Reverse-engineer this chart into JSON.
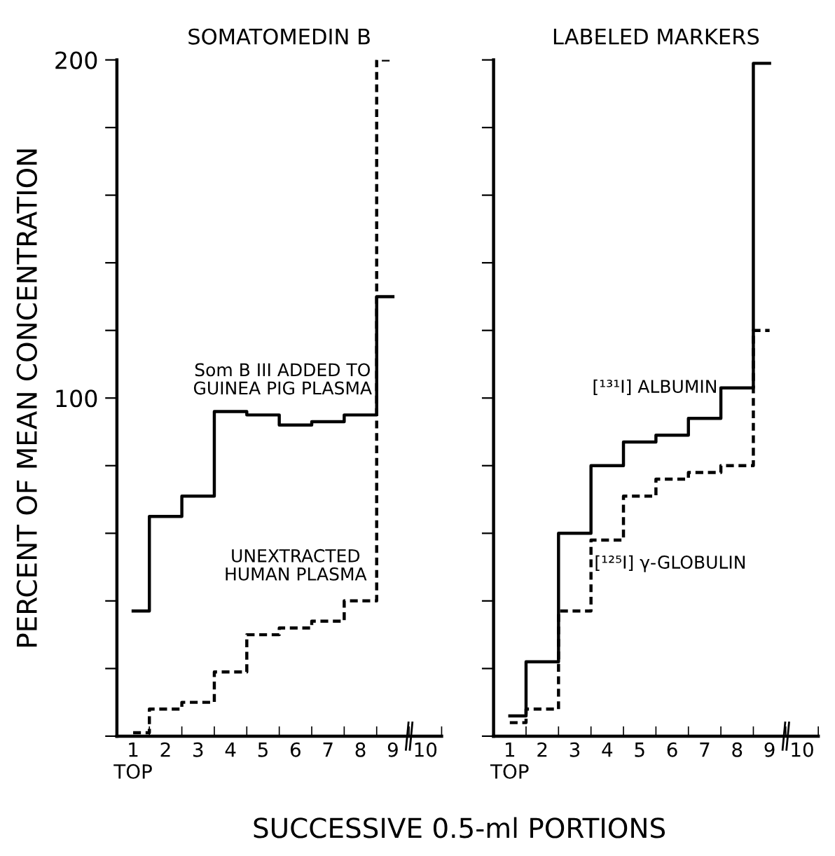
{
  "chart_data": [
    {
      "type": "step",
      "title": "SOMATOMEDIN B",
      "ylabel": "PERCENT OF MEAN CONCENTRATION",
      "xlabel": "SUCCESSIVE 0.5-ml PORTIONS",
      "categories": [
        "1\nTOP",
        "2",
        "3",
        "4",
        "5",
        "6",
        "7",
        "8",
        "9",
        "10"
      ],
      "series": [
        {
          "name": "Som B III ADDED TO\nGUINEA PIG PLASMA",
          "color": "#000000",
          "line_style": "solid",
          "values": [
            37,
            65,
            71,
            96,
            95,
            92,
            93,
            95,
            130,
            null
          ]
        },
        {
          "name": "UNEXTRACTED\nHUMAN PLASMA",
          "color": "#000000",
          "line_style": "dashed",
          "values": [
            1,
            8,
            10,
            19,
            30,
            32,
            34,
            40,
            200,
            null
          ]
        }
      ],
      "ylim": [
        0,
        200
      ],
      "yticks": [
        {
          "value": 0,
          "label": null
        },
        {
          "value": 20,
          "label": null
        },
        {
          "value": 40,
          "label": null
        },
        {
          "value": 60,
          "label": null
        },
        {
          "value": 80,
          "label": null
        },
        100,
        {
          "value": 120,
          "label": null
        },
        {
          "value": 140,
          "label": null
        },
        {
          "value": 160,
          "label": null
        },
        {
          "value": 180,
          "label": null
        },
        200
      ],
      "grid": false,
      "legend": false,
      "marker": "none"
    },
    {
      "type": "step",
      "title": "LABELED MARKERS",
      "categories": [
        "1\nTOP",
        "2",
        "3",
        "4",
        "5",
        "6",
        "7",
        "8",
        "9",
        "10"
      ],
      "series": [
        {
          "name": "[¹³¹I] ALBUMIN",
          "color": "#000000",
          "line_style": "solid",
          "values": [
            6,
            22,
            60,
            80,
            87,
            89,
            94,
            103,
            199,
            null
          ]
        },
        {
          "name": "[¹²⁵I] γ-GLOBULIN",
          "color": "#000000",
          "line_style": "dashed",
          "values": [
            4,
            8,
            37,
            58,
            71,
            76,
            78,
            80,
            120,
            null
          ]
        }
      ],
      "ylim": [
        0,
        200
      ],
      "yticks": [
        {
          "value": 0,
          "label": null
        },
        {
          "value": 20,
          "label": null
        },
        {
          "value": 40,
          "label": null
        },
        {
          "value": 60,
          "label": null
        },
        {
          "value": 80,
          "label": null
        },
        {
          "value": 100,
          "label": null
        },
        {
          "value": 120,
          "label": null
        },
        {
          "value": 140,
          "label": null
        },
        {
          "value": 160,
          "label": null
        },
        {
          "value": 180,
          "label": null
        },
        {
          "value": 200,
          "label": null
        }
      ],
      "tick_labels": "x",
      "grid": false,
      "legend": false,
      "marker": "none"
    }
  ]
}
